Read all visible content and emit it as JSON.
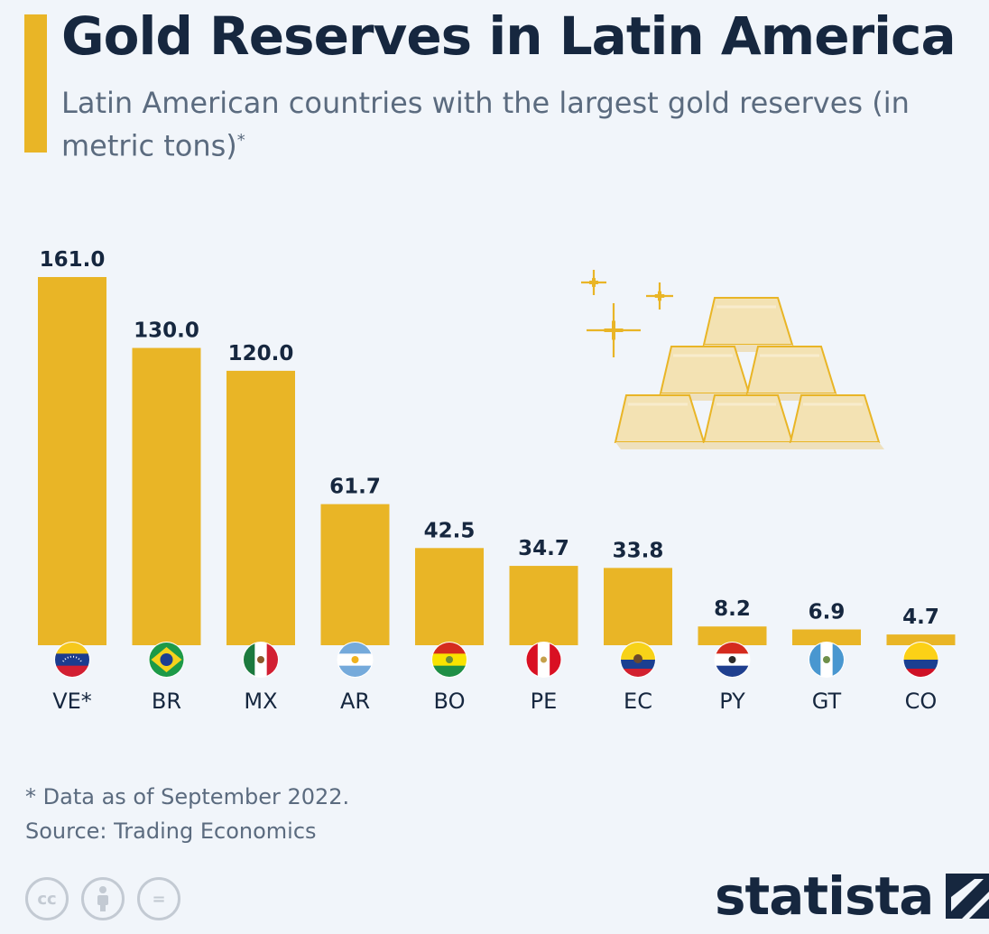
{
  "title": "Gold Reserves in Latin America",
  "subtitle": "Latin American countries with the largest gold reserves (in metric tons)",
  "subtitle_mark": "*",
  "colors": {
    "bar": "#e9b526",
    "text": "#16273f",
    "muted": "#5b6b7f",
    "background": "#f1f5fa"
  },
  "chart_data": {
    "type": "bar",
    "categories": [
      "VE*",
      "BR",
      "MX",
      "AR",
      "BO",
      "PE",
      "EC",
      "PY",
      "GT",
      "CO"
    ],
    "values": [
      161.0,
      130.0,
      120.0,
      61.7,
      42.5,
      34.7,
      33.8,
      8.2,
      6.9,
      4.7
    ],
    "value_labels": [
      "161.0",
      "130.0",
      "120.0",
      "61.7",
      "42.5",
      "34.7",
      "33.8",
      "8.2",
      "6.9",
      "4.7"
    ],
    "ylim": [
      0,
      161
    ],
    "grid": false,
    "legend": "none",
    "category_icons": [
      "venezuela-flag-icon",
      "brazil-flag-icon",
      "mexico-flag-icon",
      "argentina-flag-icon",
      "bolivia-flag-icon",
      "peru-flag-icon",
      "ecuador-flag-icon",
      "paraguay-flag-icon",
      "guatemala-flag-icon",
      "colombia-flag-icon"
    ]
  },
  "illustration": "gold-bars-icon",
  "footnote": "* Data as of September 2022.",
  "source": "Source: Trading Economics",
  "license_icons": [
    "creative-commons-icon",
    "attribution-icon",
    "no-derivatives-icon"
  ],
  "license_symbols": [
    "cc",
    "",
    "="
  ],
  "brand": "statista"
}
